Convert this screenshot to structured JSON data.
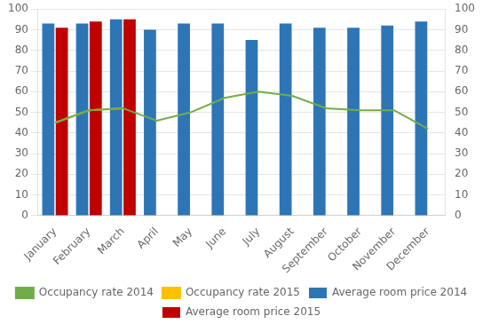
{
  "chart_data": {
    "type": "bar",
    "categories": [
      "January",
      "February",
      "March",
      "April",
      "May",
      "June",
      "July",
      "August",
      "September",
      "October",
      "November",
      "December"
    ],
    "series": [
      {
        "name": "Average room price 2014",
        "type": "bar",
        "color": "#2E75B6",
        "values": [
          93,
          93,
          95,
          90,
          93,
          93,
          85,
          93,
          91,
          91,
          92,
          94
        ]
      },
      {
        "name": "Average room price 2015",
        "type": "bar",
        "color": "#C00000",
        "values": [
          91,
          94,
          95,
          null,
          null,
          null,
          null,
          null,
          null,
          null,
          null,
          null
        ]
      },
      {
        "name": "Occupancy rate 2014",
        "type": "line",
        "axis": "y2",
        "color": "#70AD47",
        "values": [
          45,
          51,
          52,
          46,
          50,
          57,
          60,
          58,
          52,
          51,
          51,
          42
        ]
      },
      {
        "name": "Occupancy rate 2015",
        "type": "line",
        "axis": "y2",
        "color": "#FFC000",
        "values": [
          45,
          51,
          52,
          null,
          null,
          null,
          null,
          null,
          null,
          null,
          null,
          null
        ]
      }
    ],
    "ylim": [
      0,
      100
    ],
    "yticks": [
      0,
      10,
      20,
      30,
      40,
      50,
      60,
      70,
      80,
      90,
      100
    ],
    "y2lim": [
      0,
      100
    ],
    "y2ticks": [
      0,
      10,
      20,
      30,
      40,
      50,
      60,
      70,
      80,
      90,
      100
    ],
    "grid": true,
    "legend": "bottom"
  }
}
